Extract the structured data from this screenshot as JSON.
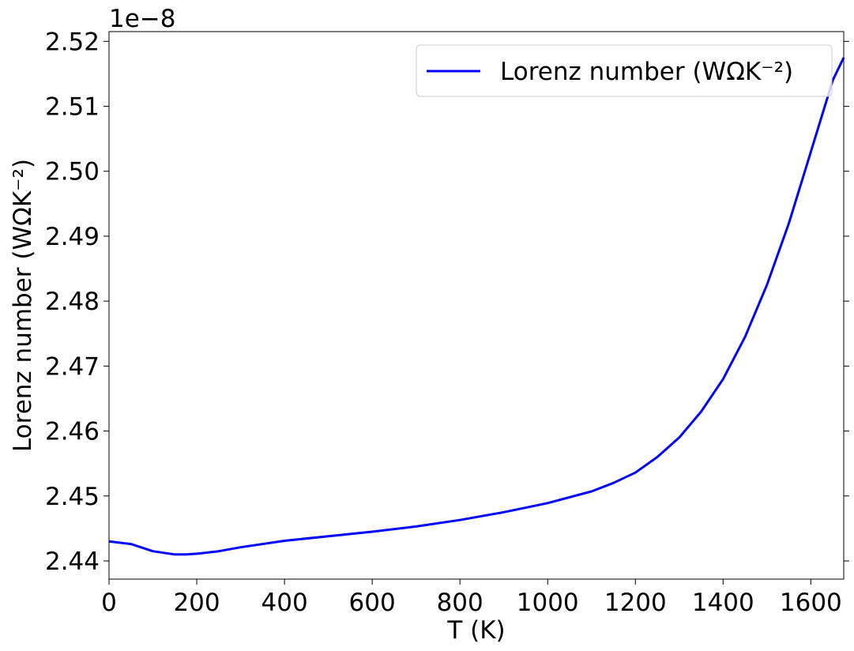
{
  "chart_data": {
    "type": "line",
    "xlabel": "T (K)",
    "ylabel": "Lorenz number (WΩK⁻²)",
    "y_offset_text": "1e−8",
    "y_scale_factor": 1e-08,
    "xlim": [
      0,
      1675
    ],
    "ylim": [
      2.4372,
      2.5215
    ],
    "x_ticks": [
      0,
      200,
      400,
      600,
      800,
      1000,
      1200,
      1400,
      1600
    ],
    "x_tick_labels": [
      "0",
      "200",
      "400",
      "600",
      "800",
      "1000",
      "1200",
      "1400",
      "1600"
    ],
    "y_ticks": [
      2.44,
      2.45,
      2.46,
      2.47,
      2.48,
      2.49,
      2.5,
      2.51,
      2.52
    ],
    "y_tick_labels": [
      "2.44",
      "2.45",
      "2.46",
      "2.47",
      "2.48",
      "2.49",
      "2.50",
      "2.51",
      "2.52"
    ],
    "grid": false,
    "legend_position": "top-right",
    "series": [
      {
        "name": "Lorenz number (WΩK⁻²)",
        "color": "#0000ff",
        "x": [
          0,
          50,
          100,
          150,
          175,
          200,
          250,
          300,
          400,
          500,
          600,
          700,
          800,
          900,
          1000,
          1100,
          1150,
          1200,
          1250,
          1300,
          1350,
          1400,
          1450,
          1500,
          1550,
          1600,
          1650,
          1675
        ],
        "y": [
          2.443,
          2.4426,
          2.4415,
          2.441,
          2.441,
          2.4411,
          2.4415,
          2.4421,
          2.4431,
          2.4438,
          2.4445,
          2.4453,
          2.4463,
          2.4475,
          2.4489,
          2.4507,
          2.452,
          2.4536,
          2.456,
          2.459,
          2.463,
          2.468,
          2.4745,
          2.4825,
          2.492,
          2.503,
          2.514,
          2.5175
        ]
      }
    ]
  }
}
